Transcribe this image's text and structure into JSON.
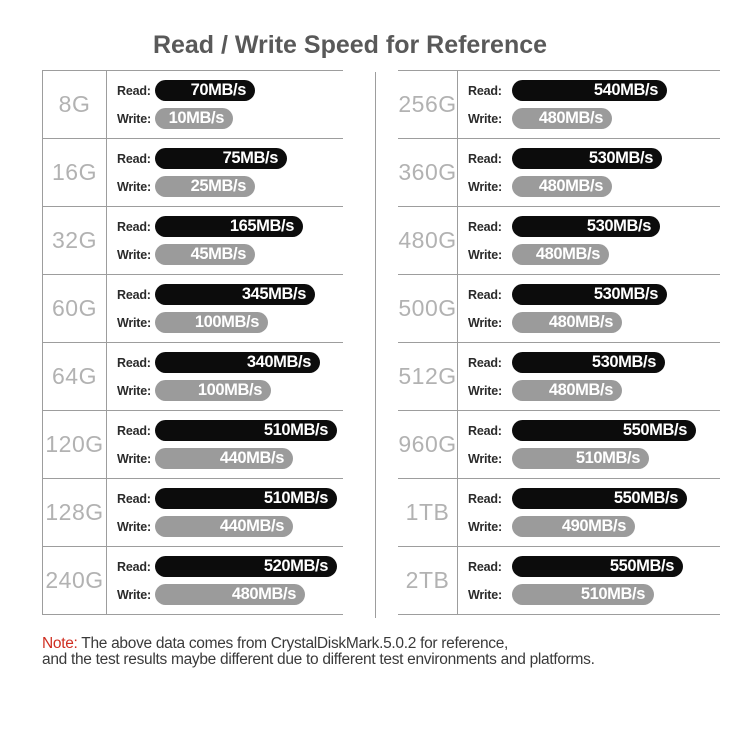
{
  "title": "Read / Write Speed for Reference",
  "labels": {
    "read": "Read:",
    "write": "Write:"
  },
  "colors": {
    "read_bar": "#0c0c0c",
    "write_bar": "#9b9b9b",
    "bar_text": "#ffffff",
    "capacity_text": "#b2b2b2",
    "title_text": "#595959",
    "grid_line": "#9d9d9d",
    "note_accent": "#cf2e21"
  },
  "tables": [
    {
      "rows": [
        {
          "capacity": "8G",
          "read": "70MB/s",
          "write": "10MB/s",
          "read_w": 100,
          "write_w": 78
        },
        {
          "capacity": "16G",
          "read": "75MB/s",
          "write": "25MB/s",
          "read_w": 132,
          "write_w": 100
        },
        {
          "capacity": "32G",
          "read": "165MB/s",
          "write": "45MB/s",
          "read_w": 148,
          "write_w": 100
        },
        {
          "capacity": "60G",
          "read": "345MB/s",
          "write": "100MB/s",
          "read_w": 160,
          "write_w": 113
        },
        {
          "capacity": "64G",
          "read": "340MB/s",
          "write": "100MB/s",
          "read_w": 165,
          "write_w": 116
        },
        {
          "capacity": "120G",
          "read": "510MB/s",
          "write": "440MB/s",
          "read_w": 182,
          "write_w": 138
        },
        {
          "capacity": "128G",
          "read": "510MB/s",
          "write": "440MB/s",
          "read_w": 182,
          "write_w": 138
        },
        {
          "capacity": "240G",
          "read": "520MB/s",
          "write": "480MB/s",
          "read_w": 182,
          "write_w": 150
        }
      ]
    },
    {
      "rows": [
        {
          "capacity": "256G",
          "read": "540MB/s",
          "write": "480MB/s",
          "read_w": 155,
          "write_w": 100
        },
        {
          "capacity": "360G",
          "read": "530MB/s",
          "write": "480MB/s",
          "read_w": 150,
          "write_w": 100
        },
        {
          "capacity": "480G",
          "read": "530MB/s",
          "write": "480MB/s",
          "read_w": 148,
          "write_w": 97
        },
        {
          "capacity": "500G",
          "read": "530MB/s",
          "write": "480MB/s",
          "read_w": 155,
          "write_w": 110
        },
        {
          "capacity": "512G",
          "read": "530MB/s",
          "write": "480MB/s",
          "read_w": 153,
          "write_w": 110
        },
        {
          "capacity": "960G",
          "read": "550MB/s",
          "write": "510MB/s",
          "read_w": 184,
          "write_w": 137
        },
        {
          "capacity": "1TB",
          "read": "550MB/s",
          "write": "490MB/s",
          "read_w": 175,
          "write_w": 123
        },
        {
          "capacity": "2TB",
          "read": "550MB/s",
          "write": "510MB/s",
          "read_w": 171,
          "write_w": 142
        }
      ]
    }
  ],
  "note": {
    "prefix": "Note:",
    "line1": " The above data comes from CrystalDiskMark.5.0.2 for reference,",
    "line2": "and the test results maybe different due to different test environments and platforms."
  },
  "chart_data": {
    "type": "bar",
    "orientation": "horizontal",
    "title": "Read / Write Speed for Reference",
    "unit": "MB/s",
    "categories": [
      "8G",
      "16G",
      "32G",
      "60G",
      "64G",
      "120G",
      "128G",
      "240G",
      "256G",
      "360G",
      "480G",
      "500G",
      "512G",
      "960G",
      "1TB",
      "2TB"
    ],
    "series": [
      {
        "name": "Read",
        "values": [
          70,
          75,
          165,
          345,
          340,
          510,
          510,
          520,
          540,
          530,
          530,
          530,
          530,
          550,
          550,
          550
        ]
      },
      {
        "name": "Write",
        "values": [
          10,
          25,
          45,
          100,
          100,
          440,
          440,
          480,
          480,
          480,
          480,
          480,
          480,
          510,
          490,
          510
        ]
      }
    ],
    "colors": {
      "read": "#0c0c0c",
      "write": "#9b9b9b"
    },
    "legend_position": "none",
    "grid": "row-separators-only",
    "annotations": "values printed inside bars; bar lengths not strictly proportional to values"
  }
}
